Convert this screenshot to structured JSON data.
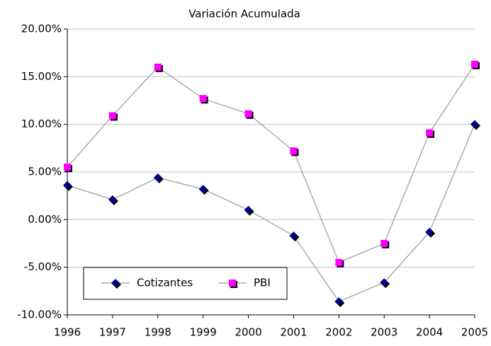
{
  "chart_data": {
    "type": "line",
    "title": "Variación Acumulada",
    "categories": [
      "1996",
      "1997",
      "1998",
      "1999",
      "2000",
      "2001",
      "2002",
      "2003",
      "2004",
      "2005"
    ],
    "series": [
      {
        "name": "Cotizantes",
        "color": "#000080",
        "marker": "diamond",
        "values": [
          3.6,
          2.1,
          4.4,
          3.2,
          1.0,
          -1.7,
          -8.6,
          -6.6,
          -1.3,
          10.0
        ]
      },
      {
        "name": "PBI",
        "color": "#ff00ff",
        "marker": "square",
        "values": [
          5.5,
          10.9,
          16.0,
          12.7,
          11.1,
          7.2,
          -4.5,
          -2.5,
          9.1,
          16.3
        ]
      }
    ],
    "line_color": "#a0a0a0",
    "ylim": [
      -10,
      20
    ],
    "yticks": [
      {
        "value": -10,
        "label": "-10.00%"
      },
      {
        "value": -5,
        "label": "-5.00%"
      },
      {
        "value": 0,
        "label": "0.00%"
      },
      {
        "value": 5,
        "label": "5.00%"
      },
      {
        "value": 10,
        "label": "10.00%"
      },
      {
        "value": 15,
        "label": "15.00%"
      },
      {
        "value": 20,
        "label": "20.00%"
      }
    ],
    "grid": true,
    "legend": "lower left"
  }
}
